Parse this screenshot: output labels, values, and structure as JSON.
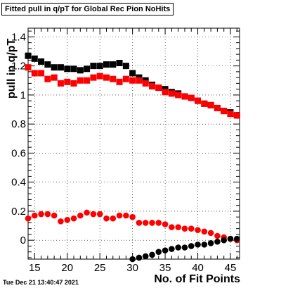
{
  "title": "Fitted pull in q/pT for Global Rec Pion NoHits",
  "timestamp": "Tue Dec 21 13:40:47 2021",
  "chart_data": {
    "type": "scatter",
    "title": "Fitted pull in q/pT for Global Rec Pion NoHits",
    "xlabel": "No. of Fit Points",
    "ylabel": "pull in q/pT",
    "xlim": [
      14,
      46.4
    ],
    "ylim": [
      -0.13,
      1.46
    ],
    "xticks": [
      15,
      20,
      25,
      30,
      35,
      40,
      45
    ],
    "yticks": [
      0,
      0.2,
      0.4,
      0.6,
      0.8,
      1,
      1.2,
      1.4
    ],
    "ytick_labels": [
      "0",
      "0.2",
      "0.4",
      "0.6",
      "0.8",
      "1",
      "1.2",
      "1.4"
    ],
    "grid": true,
    "series": [
      {
        "color": "#000000",
        "marker": "square",
        "x": [
          14,
          15,
          16,
          17,
          18,
          19,
          20,
          21,
          22,
          23,
          24,
          25,
          26,
          27,
          28,
          29,
          30,
          31,
          32,
          33,
          34,
          35,
          36,
          37,
          38,
          39,
          40,
          41,
          42,
          43,
          44,
          45,
          46
        ],
        "y": [
          1.27,
          1.25,
          1.23,
          1.21,
          1.19,
          1.19,
          1.18,
          1.18,
          1.17,
          1.18,
          1.2,
          1.2,
          1.21,
          1.21,
          1.22,
          1.2,
          1.15,
          1.12,
          1.1,
          1.07,
          1.05,
          1.04,
          1.02,
          1.01,
          0.99,
          0.98,
          0.96,
          0.94,
          0.93,
          0.91,
          0.89,
          0.88,
          0.86
        ]
      },
      {
        "color": "#ff0000",
        "marker": "square",
        "x": [
          14,
          15,
          16,
          17,
          18,
          19,
          20,
          21,
          22,
          23,
          24,
          25,
          26,
          27,
          28,
          29,
          30,
          31,
          32,
          33,
          34,
          35,
          36,
          37,
          38,
          39,
          40,
          41,
          42,
          43,
          44,
          45,
          46
        ],
        "y": [
          1.19,
          1.15,
          1.15,
          1.11,
          1.12,
          1.08,
          1.09,
          1.08,
          1.1,
          1.1,
          1.12,
          1.13,
          1.12,
          1.11,
          1.09,
          1.11,
          1.1,
          1.1,
          1.08,
          1.06,
          1.05,
          1.02,
          1.01,
          1.0,
          0.99,
          0.98,
          0.96,
          0.94,
          0.93,
          0.91,
          0.89,
          0.87,
          0.86
        ]
      },
      {
        "color": "#ff0000",
        "marker": "circle",
        "x": [
          14,
          15,
          16,
          17,
          18,
          19,
          20,
          21,
          22,
          23,
          24,
          25,
          26,
          27,
          28,
          29,
          30,
          31,
          32,
          33,
          34,
          35,
          36,
          37,
          38,
          39,
          40,
          41,
          42,
          43,
          44,
          45,
          46
        ],
        "y": [
          0.15,
          0.17,
          0.18,
          0.18,
          0.17,
          0.13,
          0.14,
          0.15,
          0.17,
          0.19,
          0.18,
          0.18,
          0.15,
          0.15,
          0.17,
          0.17,
          0.16,
          0.12,
          0.12,
          0.12,
          0.12,
          0.11,
          0.09,
          0.09,
          0.08,
          0.08,
          0.07,
          0.06,
          0.05,
          0.03,
          0.02,
          0.01,
          0.0
        ]
      },
      {
        "color": "#000000",
        "marker": "circle",
        "x": [
          30,
          31,
          32,
          33,
          34,
          35,
          36,
          37,
          38,
          39,
          40,
          41,
          42,
          43,
          44,
          45,
          46
        ],
        "y": [
          -0.13,
          -0.12,
          -0.11,
          -0.1,
          -0.08,
          -0.07,
          -0.06,
          -0.05,
          -0.05,
          -0.04,
          -0.03,
          -0.03,
          -0.02,
          -0.01,
          0.0,
          0.01,
          0.01
        ]
      }
    ]
  }
}
